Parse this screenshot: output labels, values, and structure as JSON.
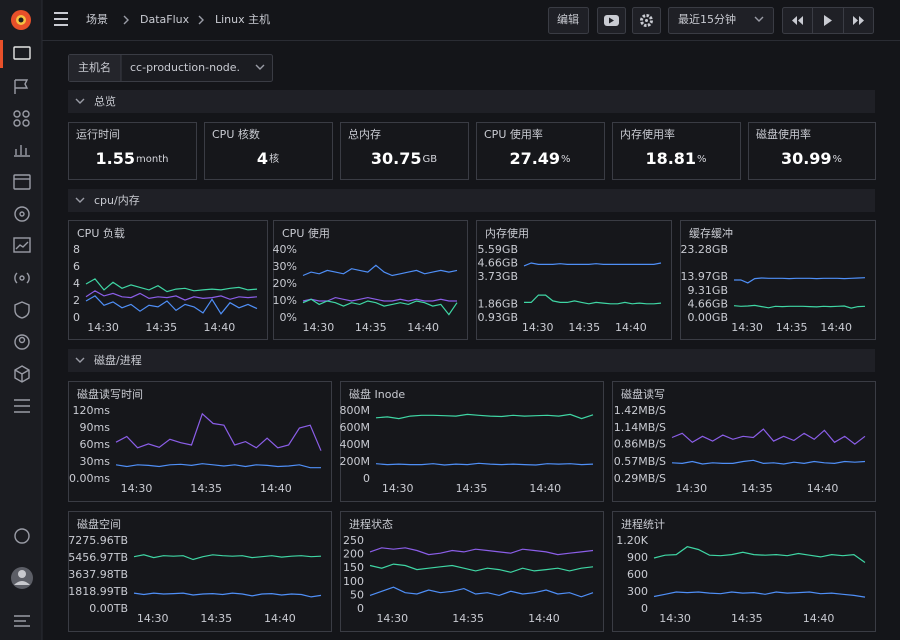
{
  "header": {
    "breadcrumb": [
      "场景",
      "DataFlux",
      "Linux 主机"
    ],
    "edit": "编辑",
    "time_range": "最近15分钟"
  },
  "filter": {
    "label": "主机名",
    "value": "cc-production-node."
  },
  "sections": [
    "总览",
    "cpu/内存",
    "磁盘/进程"
  ],
  "cards": [
    {
      "label": "运行时间",
      "value": 1.55,
      "unit": "month"
    },
    {
      "label": "CPU 核数",
      "value": 4,
      "unit": "核"
    },
    {
      "label": "总内存",
      "value": 30.75,
      "unit": "GB"
    },
    {
      "label": "CPU 使用率",
      "value": 27.49,
      "unit": "%"
    },
    {
      "label": "内存使用率",
      "value": 18.81,
      "unit": "%"
    },
    {
      "label": "磁盘使用率",
      "value": 30.99,
      "unit": "%"
    }
  ],
  "chart_data": [
    {
      "type": "line",
      "title": "CPU 负载",
      "ylim": [
        0,
        8
      ],
      "yticks": [
        0,
        2,
        4,
        6,
        8
      ],
      "xticks": [
        "14:30",
        "14:35",
        "14:40"
      ],
      "series": [
        {
          "color": "#3fd6a4",
          "values": [
            4,
            4.6,
            3.3,
            4.2,
            3.5,
            3.9,
            3.6,
            3.3,
            3.8,
            3.1,
            3.4,
            3.5,
            3.2,
            3.3,
            3.4,
            3.3,
            3.5,
            3.6,
            3.3,
            3.4
          ]
        },
        {
          "color": "#8b5ee8",
          "values": [
            2.5,
            3.2,
            2.6,
            2.9,
            2.5,
            2.4,
            2.9,
            2.3,
            2.5,
            2.4,
            2.6,
            2.1,
            2.5,
            2.3,
            2.4,
            2.6,
            2.2,
            2.5,
            2.4,
            2.5
          ]
        },
        {
          "color": "#4f8ff7",
          "values": [
            2,
            2.6,
            1.5,
            1.9,
            1.2,
            1.6,
            0.8,
            1.5,
            1.3,
            2,
            0.9,
            1.6,
            1.3,
            0.6,
            2.2,
            0.5,
            1.8,
            1.2,
            1.6,
            1.1
          ]
        }
      ]
    },
    {
      "type": "line",
      "title": "CPU 使用",
      "ylim": [
        0,
        40
      ],
      "yticks": [
        {
          "value": 0,
          "label": "0%"
        },
        {
          "value": 10,
          "label": "10%"
        },
        {
          "value": 20,
          "label": "20%"
        },
        {
          "value": 30,
          "label": "30%"
        },
        {
          "value": 40,
          "label": "40%"
        }
      ],
      "xticks": [
        "14:30",
        "14:35",
        "14:40"
      ],
      "series": [
        {
          "color": "#4f8ff7",
          "values": [
            25,
            27,
            26,
            28,
            27,
            26,
            29,
            28,
            27,
            31,
            27,
            25,
            26,
            27,
            28,
            26,
            27,
            28,
            27,
            28
          ]
        },
        {
          "color": "#8b5ee8",
          "values": [
            10,
            11,
            10,
            10,
            12,
            11,
            10,
            11,
            12,
            11,
            10,
            10,
            11,
            10,
            11,
            10,
            10,
            11,
            10,
            10
          ]
        },
        {
          "color": "#3fd6a4",
          "values": [
            9,
            11,
            8,
            10,
            9,
            7,
            9,
            8,
            10,
            9,
            7,
            8,
            9,
            8,
            10,
            9,
            7,
            8,
            2,
            9
          ]
        }
      ]
    },
    {
      "type": "line",
      "title": "内存使用",
      "ylim": [
        0.93,
        5.59
      ],
      "yticks": [
        {
          "value": 0.93,
          "label": "0.93GB"
        },
        {
          "value": 1.86,
          "label": "1.86GB"
        },
        {
          "value": 3.73,
          "label": "3.73GB"
        },
        {
          "value": 4.66,
          "label": "4.66GB"
        },
        {
          "value": 5.59,
          "label": "5.59GB"
        }
      ],
      "xticks": [
        "14:30",
        "14:35",
        "14:40"
      ],
      "series": [
        {
          "color": "#4f8ff7",
          "values": [
            4.5,
            4.7,
            4.6,
            4.6,
            4.6,
            4.65,
            4.6,
            4.6,
            4.6,
            4.6,
            4.65,
            4.6,
            4.6,
            4.6,
            4.6,
            4.6,
            4.6,
            4.6,
            4.6,
            4.7
          ]
        },
        {
          "color": "#3fd6a4",
          "values": [
            2.0,
            2.0,
            2.5,
            2.5,
            2.1,
            2.0,
            2.0,
            2.1,
            2.0,
            1.9,
            2.0,
            1.95,
            1.9,
            1.9,
            2.0,
            1.9,
            1.95,
            1.9,
            1.9,
            1.95
          ]
        }
      ]
    },
    {
      "type": "line",
      "title": "缓存缓冲",
      "ylim": [
        0,
        23.28
      ],
      "yticks": [
        {
          "value": 0,
          "label": "0.00GB"
        },
        {
          "value": 4.66,
          "label": "4.66GB"
        },
        {
          "value": 9.31,
          "label": "9.31GB"
        },
        {
          "value": 13.97,
          "label": "13.97GB"
        },
        {
          "value": 23.28,
          "label": "23.28GB"
        }
      ],
      "xticks": [
        "14:30",
        "14:35",
        "14:40"
      ],
      "series": [
        {
          "color": "#4f8ff7",
          "values": [
            13,
            13,
            12,
            13.5,
            13.7,
            13.6,
            13.6,
            13.6,
            13.5,
            13.6,
            13.6,
            13.6,
            13.5,
            13.6,
            13.6,
            13.6,
            13.5,
            13.6,
            13.7,
            13.8
          ]
        },
        {
          "color": "#3fd6a4",
          "values": [
            4.2,
            4.0,
            4.1,
            4.3,
            3.9,
            3.5,
            4.0,
            3.9,
            4.0,
            4.0,
            4.0,
            3.9,
            3.8,
            4.0,
            3.9,
            4.0,
            4.1,
            3.4,
            3.9,
            4.0
          ]
        }
      ]
    },
    {
      "type": "line",
      "title": "磁盘读写时间",
      "ylim": [
        0,
        120
      ],
      "yticks": [
        {
          "value": 0,
          "label": "0.00ms"
        },
        {
          "value": 30,
          "label": "30ms"
        },
        {
          "value": 60,
          "label": "60ms"
        },
        {
          "value": 90,
          "label": "90ms"
        },
        {
          "value": 120,
          "label": "120ms"
        }
      ],
      "xticks": [
        "14:30",
        "14:35",
        "14:40"
      ],
      "series": [
        {
          "color": "#8b5ee8",
          "values": [
            65,
            75,
            55,
            62,
            56,
            70,
            64,
            60,
            115,
            98,
            95,
            60,
            66,
            55,
            72,
            55,
            60,
            90,
            95,
            50
          ]
        },
        {
          "color": "#4f8ff7",
          "values": [
            25,
            22,
            25,
            24,
            22,
            25,
            26,
            24,
            27,
            25,
            23,
            25,
            22,
            25,
            24,
            22,
            23,
            25,
            20,
            20
          ]
        }
      ]
    },
    {
      "type": "line",
      "title": "磁盘 Inode",
      "ylim": [
        0,
        800
      ],
      "yticks": [
        0,
        {
          "value": 200,
          "label": "200M"
        },
        {
          "value": 400,
          "label": "400M"
        },
        {
          "value": 600,
          "label": "600M"
        },
        {
          "value": 800,
          "label": "800M"
        }
      ],
      "xticks": [
        "14:30",
        "14:35",
        "14:40"
      ],
      "series": [
        {
          "color": "#3fd6a4",
          "values": [
            720,
            730,
            710,
            740,
            750,
            750,
            745,
            740,
            760,
            750,
            740,
            735,
            750,
            740,
            745,
            750,
            740,
            760,
            710,
            755
          ]
        },
        {
          "color": "#4f8ff7",
          "values": [
            180,
            170,
            175,
            170,
            170,
            180,
            165,
            175,
            170,
            185,
            175,
            170,
            175,
            170,
            165,
            180,
            175,
            180,
            170,
            175
          ]
        }
      ]
    },
    {
      "type": "line",
      "title": "磁盘读写",
      "ylim": [
        0.29,
        1.42
      ],
      "yticks": [
        {
          "value": 0.29,
          "label": "0.29MB/S"
        },
        {
          "value": 0.57,
          "label": "0.57MB/S"
        },
        {
          "value": 0.86,
          "label": "0.86MB/S"
        },
        {
          "value": 1.14,
          "label": "1.14MB/S"
        },
        {
          "value": 1.42,
          "label": "1.42MB/S"
        }
      ],
      "xticks": [
        "14:30",
        "14:35",
        "14:40"
      ],
      "series": [
        {
          "color": "#8b5ee8",
          "values": [
            0.98,
            1.05,
            0.9,
            1.0,
            0.92,
            1.02,
            0.95,
            1.0,
            0.98,
            1.12,
            0.92,
            1.0,
            0.93,
            1.05,
            0.95,
            1.1,
            0.9,
            1.0,
            0.87,
            1.0
          ]
        },
        {
          "color": "#4f8ff7",
          "values": [
            0.56,
            0.55,
            0.58,
            0.54,
            0.56,
            0.55,
            0.55,
            0.58,
            0.6,
            0.55,
            0.56,
            0.54,
            0.57,
            0.55,
            0.58,
            0.56,
            0.55,
            0.58,
            0.57,
            0.58
          ]
        }
      ]
    },
    {
      "type": "line",
      "title": "磁盘空间",
      "ylim": [
        0,
        7275.96
      ],
      "yticks": [
        {
          "value": 0,
          "label": "0.00TB"
        },
        {
          "value": 1818.99,
          "label": "1818.99TB"
        },
        {
          "value": 3637.98,
          "label": "3637.98TB"
        },
        {
          "value": 5456.97,
          "label": "5456.97TB"
        },
        {
          "value": 7275.96,
          "label": "7275.96TB"
        }
      ],
      "xticks": [
        "14:30",
        "14:35",
        "14:40"
      ],
      "series": [
        {
          "color": "#3fd6a4",
          "values": [
            5600,
            5800,
            5500,
            5700,
            5650,
            5700,
            5300,
            5600,
            5800,
            5700,
            5650,
            5700,
            5500,
            5600,
            5700,
            5550,
            5650,
            5700,
            5600,
            5650
          ]
        },
        {
          "color": "#4f8ff7",
          "values": [
            1700,
            1550,
            1700,
            1600,
            1650,
            1700,
            1500,
            1600,
            1650,
            1550,
            1700,
            1600,
            1400,
            1600,
            1650,
            1500,
            1600,
            1550,
            1300,
            1450
          ]
        }
      ]
    },
    {
      "type": "line",
      "title": "进程状态",
      "ylim": [
        0,
        250
      ],
      "yticks": [
        0,
        50,
        100,
        150,
        200,
        250
      ],
      "xticks": [
        "14:30",
        "14:35",
        "14:40"
      ],
      "series": [
        {
          "color": "#8b5ee8",
          "values": [
            210,
            225,
            220,
            225,
            215,
            200,
            205,
            215,
            210,
            220,
            215,
            210,
            205,
            220,
            215,
            210,
            200,
            205,
            210,
            215
          ]
        },
        {
          "color": "#3fd6a4",
          "values": [
            160,
            150,
            165,
            160,
            145,
            150,
            155,
            160,
            150,
            140,
            150,
            145,
            135,
            150,
            140,
            145,
            150,
            140,
            150,
            155
          ]
        },
        {
          "color": "#4f8ff7",
          "values": [
            50,
            65,
            80,
            60,
            55,
            70,
            60,
            65,
            75,
            55,
            60,
            50,
            65,
            55,
            60,
            70,
            55,
            60,
            45,
            60
          ]
        }
      ]
    },
    {
      "type": "line",
      "title": "进程统计",
      "ylim": [
        0,
        1200
      ],
      "yticks": [
        0,
        300,
        600,
        900,
        {
          "value": 1200,
          "label": "1.20K"
        }
      ],
      "xticks": [
        "14:30",
        "14:35",
        "14:40"
      ],
      "series": [
        {
          "color": "#3fd6a4",
          "values": [
            900,
            950,
            960,
            1100,
            1050,
            950,
            940,
            960,
            1000,
            960,
            950,
            960,
            940,
            980,
            950,
            920,
            960,
            940,
            960,
            820
          ]
        },
        {
          "color": "#4f8ff7",
          "values": [
            220,
            260,
            300,
            290,
            300,
            280,
            270,
            300,
            280,
            290,
            260,
            300,
            280,
            290,
            300,
            270,
            280,
            260,
            240,
            210
          ]
        }
      ]
    }
  ]
}
